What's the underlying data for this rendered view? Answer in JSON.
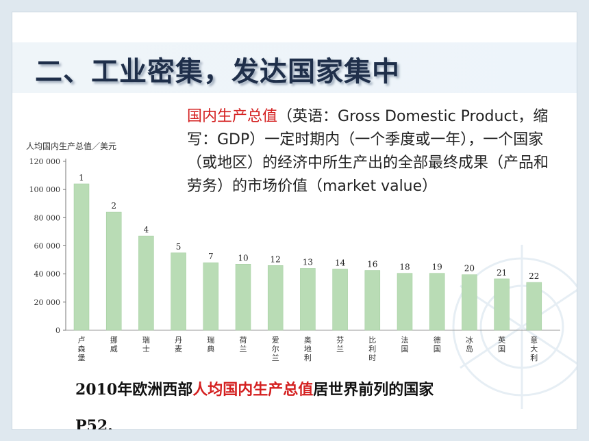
{
  "slide": {
    "title": "二、工业密集，发达国家集中",
    "definition": {
      "term": "国内生产总值",
      "body": "（英语：Gross Domestic Product，缩写：GDP）一定时期内（一个季度或一年），一个国家（或地区）的经济中所生产出的全部最终成果（产品和劳务）的市场价值（market value）"
    },
    "caption": {
      "prefix": "2010年欧洲西部",
      "highlight": "人均国内生产总值",
      "suffix": "居世界前列的国家"
    },
    "page_ref": "P52."
  },
  "colors": {
    "bar": "#b9dcb5",
    "bar_edge": "#9fcb9b",
    "highlight": "#d42020",
    "title": "#1f2f4a"
  },
  "chart_data": {
    "type": "bar",
    "ylabel": "人均国内生产总值／美元",
    "ylim": [
      0,
      120000
    ],
    "yticks": [
      "120 000",
      "100 000",
      "80 000",
      "60 000",
      "40 000",
      "20 000",
      "0"
    ],
    "categories": [
      "卢森堡",
      "挪威",
      "瑞士",
      "丹麦",
      "瑞典",
      "荷兰",
      "爱尔兰",
      "奥地利",
      "芬兰",
      "比利时",
      "法国",
      "德国",
      "冰岛",
      "英国",
      "意大利"
    ],
    "values": [
      104000,
      84000,
      67000,
      55000,
      48000,
      47000,
      46000,
      44000,
      43500,
      42500,
      40500,
      40500,
      39500,
      36500,
      34000
    ],
    "rank_labels": [
      "1",
      "2",
      "4",
      "5",
      "7",
      "10",
      "12",
      "13",
      "14",
      "16",
      "18",
      "19",
      "20",
      "21",
      "22"
    ],
    "grid": false
  }
}
